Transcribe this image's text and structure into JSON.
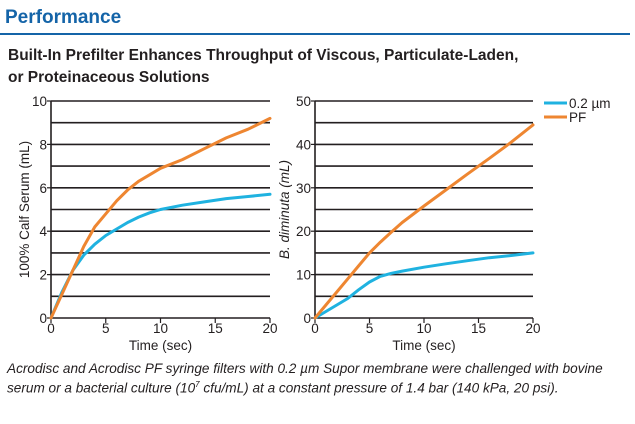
{
  "page": {
    "heading": "Performance",
    "chart_title_line1": "Built-In Prefilter Enhances Throughput of Viscous, Particulate-Laden,",
    "chart_title_line2": "or Proteinaceous Solutions",
    "caption_part1": "Acrodisc and Acrodisc PF syringe filters with 0.2 µm Supor membrane were challenged with bovine serum or a bacterial culture (10",
    "caption_sup": "7",
    "caption_part2": " cfu/mL) at a constant pressure of 1.4 bar (140 kPa, 20 psi).",
    "colors": {
      "heading": "#1464a8",
      "series_02um": "#1fb2e0",
      "series_pf": "#ee8631",
      "grid": "#231f20"
    }
  },
  "chart_data": [
    {
      "type": "line",
      "xlabel": "Time (sec)",
      "ylabel": "100% Calf Serum (mL)",
      "xlim": [
        0,
        20
      ],
      "ylim": [
        0,
        10
      ],
      "xticks": [
        "0",
        "5",
        "10",
        "15",
        "20"
      ],
      "yticks": [
        "0",
        "2",
        "4",
        "6",
        "8",
        "10"
      ],
      "grid": "horizontal",
      "series": [
        {
          "name": "0.2 µm",
          "color": "#1fb2e0",
          "x": [
            0,
            1,
            2,
            3,
            4,
            5,
            6,
            7,
            8,
            9,
            10,
            12,
            14,
            16,
            18,
            20
          ],
          "y": [
            0,
            1.2,
            2.2,
            2.9,
            3.4,
            3.8,
            4.1,
            4.4,
            4.65,
            4.85,
            5.0,
            5.2,
            5.35,
            5.5,
            5.6,
            5.7
          ]
        },
        {
          "name": "PF",
          "color": "#ee8631",
          "x": [
            0,
            1,
            2,
            3,
            4,
            5,
            6,
            7,
            8,
            9,
            10,
            12,
            14,
            16,
            18,
            20
          ],
          "y": [
            0,
            1.1,
            2.2,
            3.3,
            4.2,
            4.8,
            5.4,
            5.9,
            6.3,
            6.6,
            6.9,
            7.3,
            7.8,
            8.3,
            8.7,
            9.2
          ]
        }
      ]
    },
    {
      "type": "line",
      "xlabel": "Time (sec)",
      "ylabel": "B. diminuta (mL)",
      "xlim": [
        0,
        20
      ],
      "ylim": [
        0,
        50
      ],
      "xticks": [
        "0",
        "5",
        "10",
        "15",
        "20"
      ],
      "yticks": [
        "0",
        "10",
        "20",
        "30",
        "40",
        "50"
      ],
      "grid": "horizontal",
      "legend_position": "top-right",
      "series": [
        {
          "name": "0.2 µm",
          "color": "#1fb2e0",
          "x": [
            0,
            1,
            2,
            3,
            4,
            5,
            6,
            7,
            8,
            10,
            12,
            14,
            16,
            18,
            20
          ],
          "y": [
            0,
            1.5,
            3,
            4.5,
            6.5,
            8.3,
            9.6,
            10.3,
            10.8,
            11.7,
            12.5,
            13.2,
            13.9,
            14.4,
            15.0
          ]
        },
        {
          "name": "PF",
          "color": "#ee8631",
          "x": [
            0,
            1,
            2,
            3,
            4,
            5,
            6,
            7,
            8,
            10,
            12,
            14,
            16,
            18,
            20
          ],
          "y": [
            0,
            3,
            6,
            9,
            12,
            15,
            17.5,
            19.8,
            22,
            25.8,
            29.5,
            33.2,
            36.8,
            40.5,
            44.5
          ]
        }
      ]
    }
  ]
}
